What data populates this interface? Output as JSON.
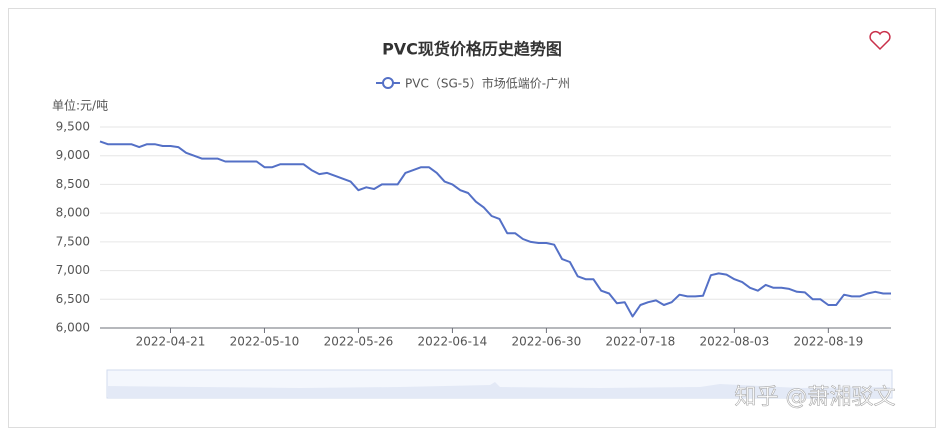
{
  "chart_data": {
    "type": "line",
    "title": "PVC现货价格历史趋势图",
    "y_axis_label": "单位:元/吨",
    "watermark": "知乎 @萧湘驳文",
    "categories": [
      null,
      null,
      null,
      null,
      null,
      null,
      null,
      null,
      null,
      "2022-04-21",
      null,
      null,
      null,
      null,
      null,
      null,
      null,
      null,
      null,
      null,
      null,
      "2022-05-10",
      null,
      null,
      null,
      null,
      null,
      null,
      null,
      null,
      null,
      null,
      null,
      "2022-05-26",
      null,
      null,
      null,
      null,
      null,
      null,
      null,
      null,
      null,
      null,
      null,
      "2022-06-14",
      null,
      null,
      null,
      null,
      null,
      null,
      null,
      null,
      null,
      null,
      null,
      "2022-06-30",
      null,
      null,
      null,
      null,
      null,
      null,
      null,
      null,
      null,
      null,
      null,
      "2022-07-18",
      null,
      null,
      null,
      null,
      null,
      null,
      null,
      null,
      null,
      null,
      null,
      "2022-08-03",
      null,
      null,
      null,
      null,
      null,
      null,
      null,
      null,
      null,
      null,
      null,
      "2022-08-19",
      null,
      null,
      null,
      null,
      null,
      null,
      null,
      null
    ],
    "series": [
      {
        "name": "PVC（SG-5）市场低端价-广州",
        "color": "#5470c6",
        "values": [
          9250,
          9200,
          9200,
          9200,
          9200,
          9150,
          9200,
          9200,
          9170,
          9170,
          9150,
          9050,
          9000,
          8950,
          8950,
          8950,
          8900,
          8900,
          8900,
          8900,
          8900,
          8800,
          8800,
          8850,
          8850,
          8850,
          8850,
          8750,
          8680,
          8700,
          8650,
          8600,
          8550,
          8400,
          8450,
          8420,
          8500,
          8500,
          8500,
          8700,
          8750,
          8800,
          8800,
          8700,
          8550,
          8500,
          8400,
          8350,
          8200,
          8100,
          7950,
          7900,
          7650,
          7650,
          7550,
          7500,
          7480,
          7480,
          7450,
          7200,
          7150,
          6900,
          6850,
          6850,
          6650,
          6600,
          6430,
          6450,
          6200,
          6400,
          6450,
          6480,
          6400,
          6450,
          6580,
          6550,
          6550,
          6560,
          6920,
          6950,
          6930,
          6850,
          6800,
          6700,
          6650,
          6750,
          6700,
          6700,
          6680,
          6630,
          6620,
          6500,
          6500,
          6400,
          6400,
          6580,
          6550,
          6550,
          6600,
          6630,
          6600,
          6600
        ]
      }
    ],
    "ylim": [
      6000,
      9500
    ],
    "yticks": [
      {
        "value": 6000,
        "label": "6,000"
      },
      {
        "value": 6500,
        "label": "6,500"
      },
      {
        "value": 7000,
        "label": "7,000"
      },
      {
        "value": 7500,
        "label": "7,500"
      },
      {
        "value": 8000,
        "label": "8,000"
      },
      {
        "value": 8500,
        "label": "8,500"
      },
      {
        "value": 9000,
        "label": "9,000"
      },
      {
        "value": 9500,
        "label": "9,500"
      }
    ],
    "grid": true
  }
}
